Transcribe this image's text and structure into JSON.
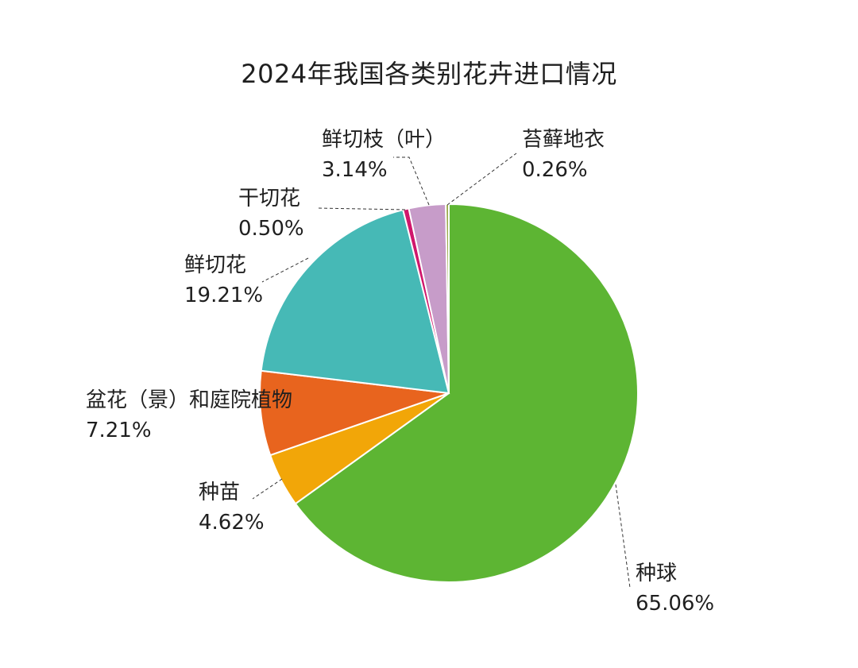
{
  "chart_data": {
    "type": "pie",
    "title": "2024年我国各类别花卉进口情况",
    "slices": [
      {
        "label": "种球",
        "value": 65.06,
        "value_label": "65.06%",
        "color": "#5db533"
      },
      {
        "label": "种苗",
        "value": 4.62,
        "value_label": "4.62%",
        "color": "#f2a608"
      },
      {
        "label": "盆花（景）和庭院植物",
        "value": 7.21,
        "value_label": "7.21%",
        "color": "#e8641e"
      },
      {
        "label": "鲜切花",
        "value": 19.21,
        "value_label": "19.21%",
        "color": "#46b9b6"
      },
      {
        "label": "干切花",
        "value": 0.5,
        "value_label": "0.50%",
        "color": "#d0176c"
      },
      {
        "label": "鲜切枝（叶）",
        "value": 3.14,
        "value_label": "3.14%",
        "color": "#c79cc9"
      },
      {
        "label": "苔藓地衣",
        "value": 0.26,
        "value_label": "0.26%",
        "color": "#9aa84a"
      }
    ]
  }
}
